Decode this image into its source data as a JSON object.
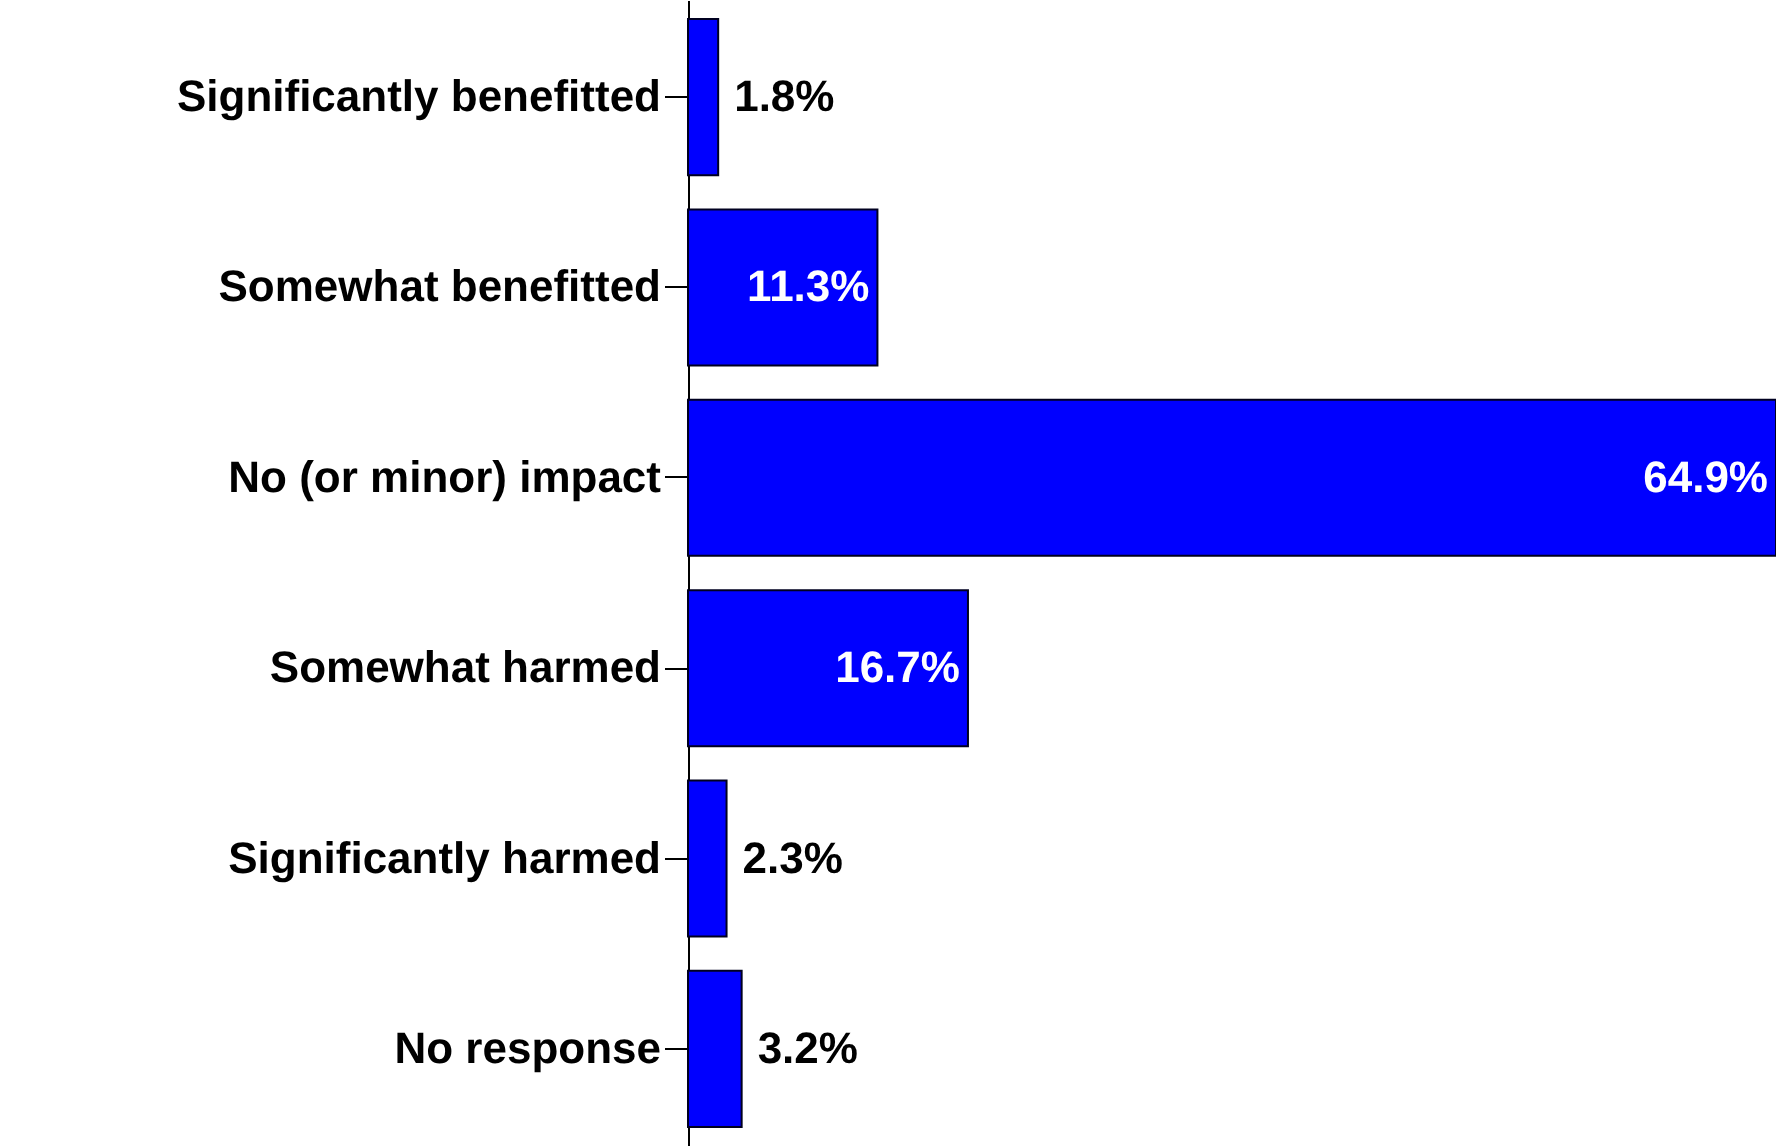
{
  "chart_data": {
    "type": "bar",
    "orientation": "horizontal",
    "categories": [
      "Significantly benefitted",
      "Somewhat benefitted",
      "No (or minor) impact",
      "Somewhat harmed",
      "Significantly harmed",
      "No response"
    ],
    "values": [
      1.8,
      11.3,
      64.9,
      16.7,
      2.3,
      3.2
    ],
    "value_labels": [
      "1.8%",
      "11.3%",
      "64.9%",
      "16.7%",
      "2.3%",
      "3.2%"
    ],
    "color": "#0000ff"
  }
}
